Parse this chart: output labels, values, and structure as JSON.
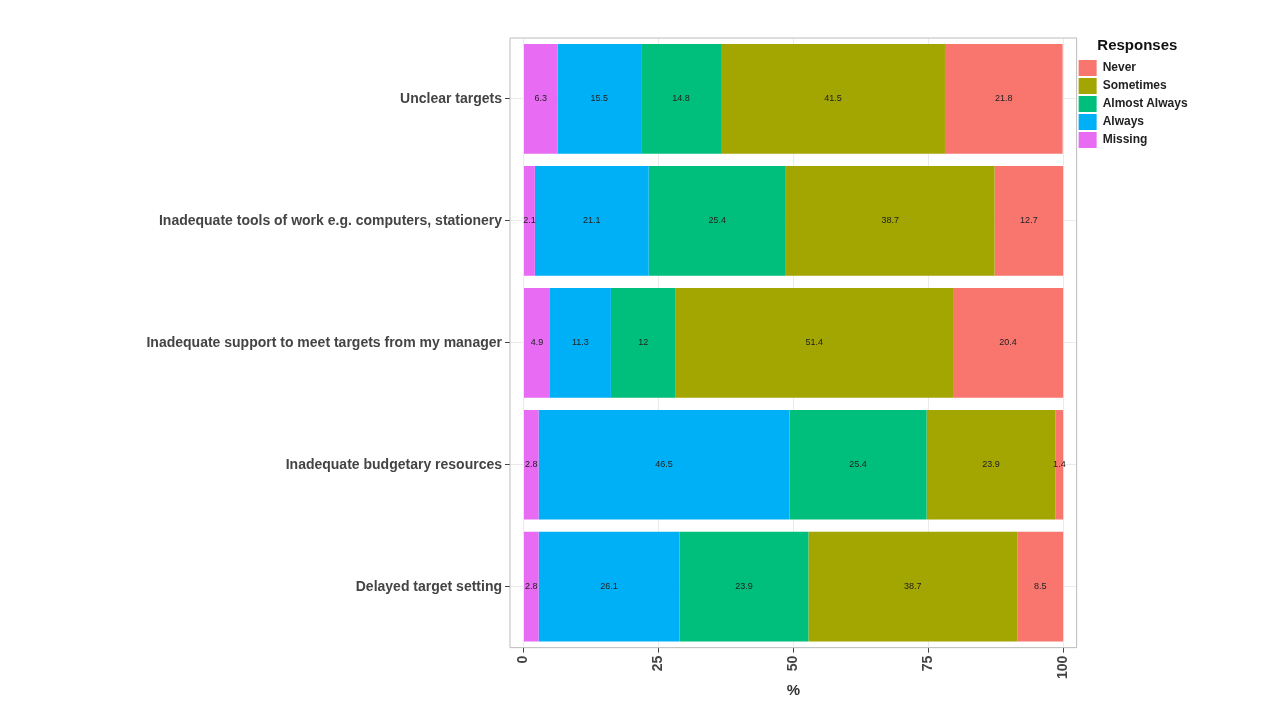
{
  "chart_data": {
    "type": "bar",
    "orientation": "horizontal",
    "stacked": true,
    "xlabel": "%",
    "legend_title": "Responses",
    "legend": "right",
    "grid": true,
    "data_labels": true,
    "categories": [
      "Unclear targets",
      "Inadequate tools of work e.g. computers, stationery",
      "Inadequate support to meet targets from my manager",
      "Inadequate budgetary resources",
      "Delayed target setting"
    ],
    "xlim": [
      -2.5,
      102.5
    ],
    "xticks": [
      0,
      25,
      50,
      75,
      100
    ],
    "series": [
      {
        "name": "Missing",
        "color": "#e76bf3",
        "values": [
          6.3,
          2.1,
          4.9,
          2.8,
          2.8
        ]
      },
      {
        "name": "Always",
        "color": "#00b0f6",
        "values": [
          15.5,
          21.1,
          11.3,
          46.5,
          26.1
        ]
      },
      {
        "name": "Almost Always",
        "color": "#00bf7d",
        "values": [
          14.8,
          25.4,
          12,
          25.4,
          23.9
        ]
      },
      {
        "name": "Sometimes",
        "color": "#a3a500",
        "values": [
          41.5,
          38.7,
          51.4,
          23.9,
          38.7
        ]
      },
      {
        "name": "Never",
        "color": "#f8766d",
        "values": [
          21.8,
          12.7,
          20.4,
          1.4,
          8.5
        ]
      }
    ]
  }
}
